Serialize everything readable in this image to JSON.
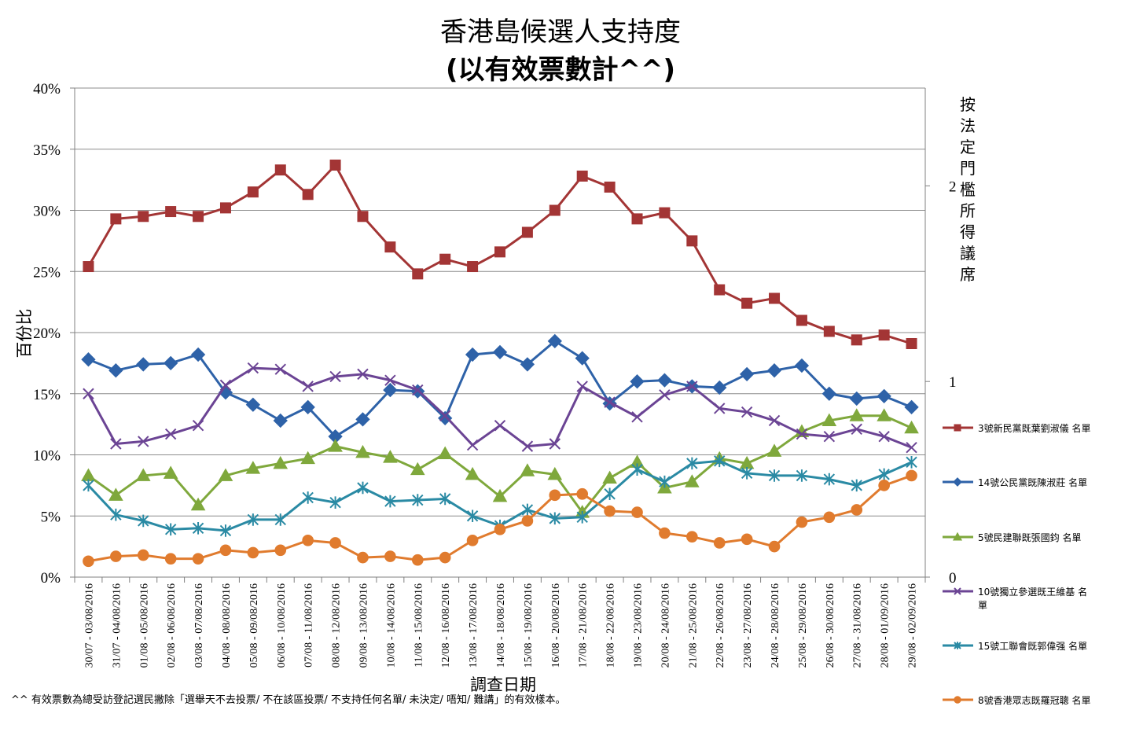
{
  "chart_data": {
    "type": "line",
    "title": "香港島候選人支持度",
    "subtitle": "(以有效票數計^^)",
    "xlabel": "調查日期",
    "ylabel": "百份比",
    "y2label": "按法定門檻所得議席",
    "ylim": [
      0,
      40
    ],
    "y_ticks": [
      "0%",
      "5%",
      "10%",
      "15%",
      "20%",
      "25%",
      "30%",
      "35%",
      "40%"
    ],
    "y2lim": [
      0,
      2.5
    ],
    "y2_ticks": [
      "0",
      "1",
      "2"
    ],
    "grid": true,
    "legend_position": "right",
    "footnote": "^^ 有效票數為總受訪登記選民撇除「選舉天不去投票/ 不在該區投票/ 不支持任何名單/ 未決定/ 唔知/ 難講」的有效樣本。",
    "categories": [
      "30/07 - 03/08/2016",
      "31/07 - 04/08/2016",
      "01/08 - 05/08/2016",
      "02/08 - 06/08/2016",
      "03/08 - 07/08/2016",
      "04/08 - 08/08/2016",
      "05/08 - 09/08/2016",
      "06/08 - 10/08/2016",
      "07/08 - 11/08/2016",
      "08/08 - 12/08/2016",
      "09/08 - 13/08/2016",
      "10/08 - 14/08/2016",
      "11/08 - 15/08/2016",
      "12/08 - 16/08/2016",
      "13/08 - 17/08/2016",
      "14/08 - 18/08/2016",
      "15/08 - 19/08/2016",
      "16/08 - 20/08/2016",
      "17/08 - 21/08/2016",
      "18/08 - 22/08/2016",
      "19/08 - 23/08/2016",
      "20/08 - 24/08/2016",
      "21/08 - 25/08/2016",
      "22/08 - 26/08/2016",
      "23/08 - 27/08/2016",
      "24/08 - 28/08/2016",
      "25/08 - 29/08/2016",
      "26/08 - 30/08/2016",
      "27/08 - 31/08/2016",
      "28/08 - 01/09/2016",
      "29/08 - 02/09/2016"
    ],
    "series": [
      {
        "name": "3號新民黨既葉劉淑儀 名單",
        "color": "#A33535",
        "marker": "square",
        "values": [
          25.4,
          29.3,
          29.5,
          29.9,
          29.5,
          30.2,
          31.5,
          33.3,
          31.3,
          33.7,
          29.5,
          27.0,
          24.8,
          26.0,
          25.4,
          26.6,
          28.2,
          30.0,
          32.8,
          31.9,
          29.3,
          29.8,
          27.5,
          23.5,
          22.4,
          22.8,
          21.0,
          20.1,
          19.4,
          19.8,
          19.1
        ]
      },
      {
        "name": "14號公民黨既陳淑莊 名單",
        "color": "#2E62A8",
        "marker": "diamond",
        "values": [
          17.8,
          16.9,
          17.4,
          17.5,
          18.2,
          15.1,
          14.1,
          12.8,
          13.9,
          11.5,
          12.9,
          15.3,
          15.2,
          13.0,
          18.2,
          18.4,
          17.4,
          19.3,
          17.9,
          14.2,
          16.0,
          16.1,
          15.6,
          15.5,
          16.6,
          16.9,
          17.3,
          15.0,
          14.6,
          14.8,
          13.9
        ]
      },
      {
        "name": "5號民建聯既張國鈞 名單",
        "color": "#7FA83C",
        "marker": "triangle",
        "values": [
          8.3,
          6.7,
          8.3,
          8.5,
          5.9,
          8.3,
          8.9,
          9.3,
          9.7,
          10.7,
          10.2,
          9.8,
          8.8,
          10.1,
          8.4,
          6.6,
          8.7,
          8.4,
          5.3,
          8.1,
          9.4,
          7.3,
          7.8,
          9.7,
          9.3,
          10.3,
          11.9,
          12.8,
          13.2,
          13.2,
          12.2
        ]
      },
      {
        "name": "10號獨立參選既王維基 名單",
        "color": "#6B4494",
        "marker": "x",
        "values": [
          15.0,
          10.9,
          11.1,
          11.7,
          12.4,
          15.7,
          17.1,
          17.0,
          15.6,
          16.4,
          16.6,
          16.1,
          15.3,
          13.2,
          10.8,
          12.4,
          10.7,
          10.9,
          15.6,
          14.3,
          13.1,
          14.9,
          15.6,
          13.8,
          13.5,
          12.8,
          11.7,
          11.5,
          12.1,
          11.5,
          10.6
        ]
      },
      {
        "name": "15號工聯會既郭偉强 名單",
        "color": "#2A8AA4",
        "marker": "asterisk",
        "values": [
          7.5,
          5.1,
          4.6,
          3.9,
          4.0,
          3.8,
          4.7,
          4.7,
          6.5,
          6.1,
          7.3,
          6.2,
          6.3,
          6.4,
          5.0,
          4.2,
          5.5,
          4.8,
          4.9,
          6.8,
          8.8,
          7.8,
          9.3,
          9.5,
          8.5,
          8.3,
          8.3,
          8.0,
          7.5,
          8.4,
          9.4
        ]
      },
      {
        "name": "8號香港眾志既羅冠聰 名單",
        "color": "#E07B2E",
        "marker": "circle",
        "values": [
          1.3,
          1.7,
          1.8,
          1.5,
          1.5,
          2.2,
          2.0,
          2.2,
          3.0,
          2.8,
          1.6,
          1.7,
          1.4,
          1.6,
          3.0,
          3.9,
          4.6,
          6.7,
          6.8,
          5.4,
          5.3,
          3.6,
          3.3,
          2.8,
          3.1,
          2.5,
          4.5,
          4.9,
          5.5,
          7.5,
          8.3
        ]
      }
    ]
  }
}
